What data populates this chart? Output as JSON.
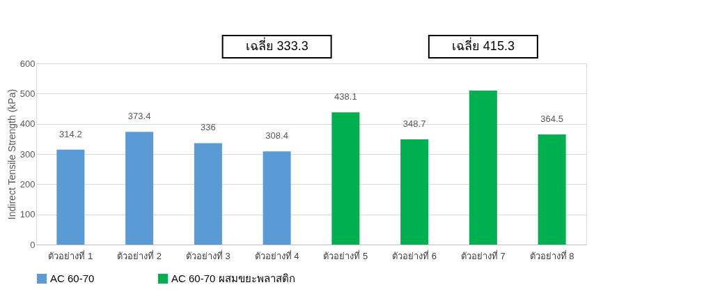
{
  "chart_data": {
    "type": "bar",
    "ylabel": "Indirect Tensile Strength (kPa)",
    "categories": [
      "ตัวอย่างที่ 1",
      "ตัวอย่างที่ 2",
      "ตัวอย่างที่ 3",
      "ตัวอย่างที่ 4",
      "ตัวอย่างที่ 5",
      "ตัวอย่างที่ 6",
      "ตัวอย่างที่ 7",
      "ตัวอย่างที่ 8"
    ],
    "series": [
      {
        "name": "AC 60-70",
        "color": "#5b9bd5",
        "values": [
          314.2,
          373.4,
          336,
          308.4,
          null,
          null,
          null,
          null
        ],
        "value_labels": [
          "314.2",
          "373.4",
          "336",
          "308.4",
          null,
          null,
          null,
          null
        ]
      },
      {
        "name": "AC 60-70 ผสมขยะพลาสติก",
        "color": "#00b050",
        "values": [
          null,
          null,
          null,
          null,
          438.1,
          348.7,
          510,
          364.5
        ],
        "value_labels": [
          null,
          null,
          null,
          null,
          "438.1",
          "348.7",
          null,
          "364.5"
        ]
      }
    ],
    "ylim": [
      0,
      600
    ],
    "yticks": [
      0,
      100,
      200,
      300,
      400,
      500,
      600
    ],
    "grid": "y",
    "legend": "bottom",
    "annotations": [
      "เฉลี่ย 333.3",
      "เฉลี่ย 415.3"
    ]
  }
}
